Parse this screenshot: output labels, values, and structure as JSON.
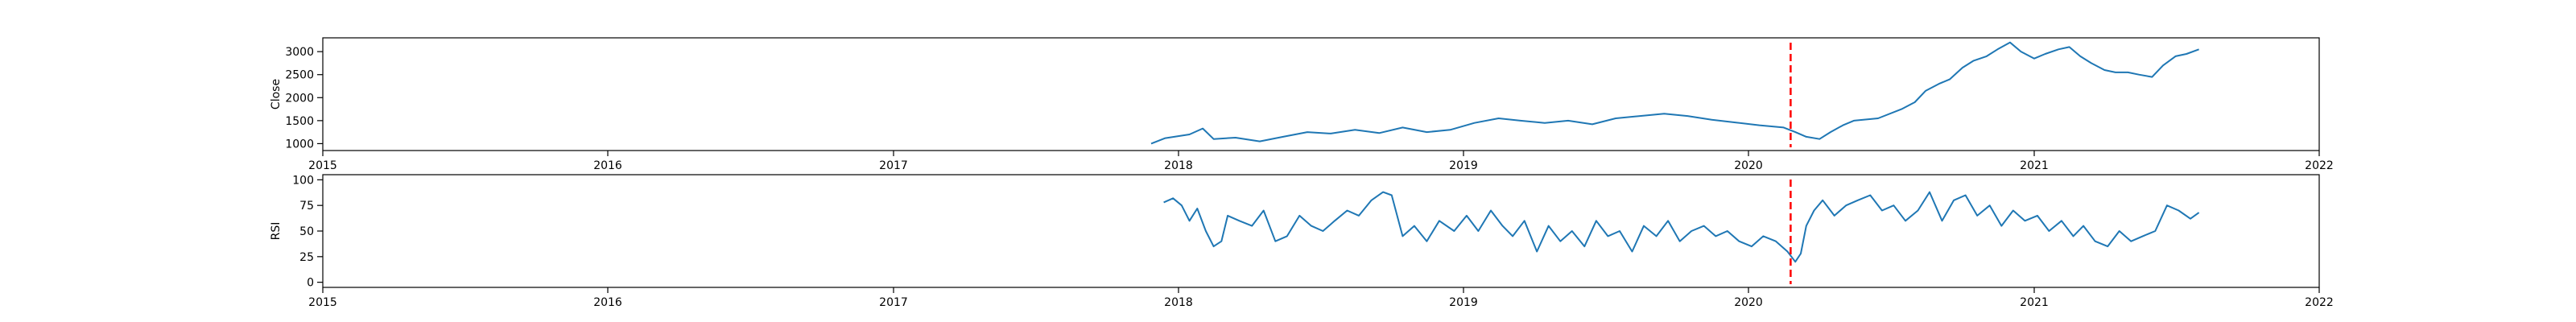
{
  "chart_data": [
    {
      "type": "line",
      "title": "",
      "xlabel": "",
      "ylabel": "Close",
      "xlim": [
        "2015-01-01",
        "2022-01-01"
      ],
      "ylim": [
        850,
        3300
      ],
      "x_ticks": [
        "2015",
        "2016",
        "2017",
        "2018",
        "2019",
        "2020",
        "2021",
        "2022"
      ],
      "y_ticks": [
        1000,
        1500,
        2000,
        2500,
        3000
      ],
      "grid": false,
      "line_color": "#1f77b4",
      "marker": {
        "x": "2020-02-24",
        "color": "#ff0000",
        "style": "dashed"
      },
      "series": [
        {
          "values": [
            [
              "2017-11-27",
              1000
            ],
            [
              "2017-12-15",
              1120
            ],
            [
              "2018-01-15",
              1200
            ],
            [
              "2018-02-01",
              1330
            ],
            [
              "2018-02-15",
              1100
            ],
            [
              "2018-03-15",
              1130
            ],
            [
              "2018-04-15",
              1050
            ],
            [
              "2018-05-15",
              1150
            ],
            [
              "2018-06-15",
              1250
            ],
            [
              "2018-07-15",
              1220
            ],
            [
              "2018-08-15",
              1300
            ],
            [
              "2018-09-15",
              1230
            ],
            [
              "2018-10-15",
              1350
            ],
            [
              "2018-11-15",
              1250
            ],
            [
              "2018-12-15",
              1300
            ],
            [
              "2019-01-15",
              1450
            ],
            [
              "2019-02-15",
              1550
            ],
            [
              "2019-03-15",
              1500
            ],
            [
              "2019-04-15",
              1450
            ],
            [
              "2019-05-15",
              1500
            ],
            [
              "2019-06-15",
              1420
            ],
            [
              "2019-07-15",
              1550
            ],
            [
              "2019-08-15",
              1600
            ],
            [
              "2019-09-15",
              1650
            ],
            [
              "2019-10-15",
              1600
            ],
            [
              "2019-11-15",
              1520
            ],
            [
              "2019-12-15",
              1460
            ],
            [
              "2020-01-15",
              1400
            ],
            [
              "2020-02-15",
              1350
            ],
            [
              "2020-03-01",
              1250
            ],
            [
              "2020-03-15",
              1150
            ],
            [
              "2020-04-01",
              1100
            ],
            [
              "2020-04-15",
              1250
            ],
            [
              "2020-05-01",
              1400
            ],
            [
              "2020-05-15",
              1500
            ],
            [
              "2020-06-15",
              1550
            ],
            [
              "2020-07-15",
              1750
            ],
            [
              "2020-08-01",
              1900
            ],
            [
              "2020-08-15",
              2150
            ],
            [
              "2020-09-01",
              2300
            ],
            [
              "2020-09-15",
              2400
            ],
            [
              "2020-10-01",
              2650
            ],
            [
              "2020-10-15",
              2800
            ],
            [
              "2020-11-01",
              2900
            ],
            [
              "2020-11-15",
              3050
            ],
            [
              "2020-12-01",
              3200
            ],
            [
              "2020-12-15",
              3000
            ],
            [
              "2021-01-01",
              2850
            ],
            [
              "2021-01-15",
              2950
            ],
            [
              "2021-02-01",
              3050
            ],
            [
              "2021-02-15",
              3100
            ],
            [
              "2021-03-01",
              2900
            ],
            [
              "2021-03-15",
              2750
            ],
            [
              "2021-04-01",
              2600
            ],
            [
              "2021-04-15",
              2550
            ],
            [
              "2021-05-01",
              2550
            ],
            [
              "2021-05-15",
              2500
            ],
            [
              "2021-06-01",
              2450
            ],
            [
              "2021-06-15",
              2700
            ],
            [
              "2021-07-01",
              2900
            ],
            [
              "2021-07-15",
              2950
            ],
            [
              "2021-07-31",
              3050
            ]
          ]
        }
      ]
    },
    {
      "type": "line",
      "title": "",
      "xlabel": "",
      "ylabel": "RSI",
      "xlim": [
        "2015-01-01",
        "2022-01-01"
      ],
      "ylim": [
        -5,
        105
      ],
      "x_ticks": [
        "2015",
        "2016",
        "2017",
        "2018",
        "2019",
        "2020",
        "2021",
        "2022"
      ],
      "y_ticks": [
        0,
        25,
        50,
        75,
        100
      ],
      "grid": false,
      "line_color": "#1f77b4",
      "marker": {
        "x": "2020-02-24",
        "color": "#ff0000",
        "style": "dashed"
      },
      "series": [
        {
          "values": [
            [
              "2017-12-13",
              78
            ],
            [
              "2017-12-25",
              82
            ],
            [
              "2018-01-05",
              75
            ],
            [
              "2018-01-15",
              60
            ],
            [
              "2018-01-25",
              72
            ],
            [
              "2018-02-05",
              50
            ],
            [
              "2018-02-15",
              35
            ],
            [
              "2018-02-25",
              40
            ],
            [
              "2018-03-05",
              65
            ],
            [
              "2018-03-20",
              60
            ],
            [
              "2018-04-05",
              55
            ],
            [
              "2018-04-20",
              70
            ],
            [
              "2018-05-05",
              40
            ],
            [
              "2018-05-20",
              45
            ],
            [
              "2018-06-05",
              65
            ],
            [
              "2018-06-20",
              55
            ],
            [
              "2018-07-05",
              50
            ],
            [
              "2018-07-20",
              60
            ],
            [
              "2018-08-05",
              70
            ],
            [
              "2018-08-20",
              65
            ],
            [
              "2018-09-05",
              80
            ],
            [
              "2018-09-20",
              88
            ],
            [
              "2018-10-01",
              85
            ],
            [
              "2018-10-15",
              45
            ],
            [
              "2018-10-30",
              55
            ],
            [
              "2018-11-15",
              40
            ],
            [
              "2018-12-01",
              60
            ],
            [
              "2018-12-20",
              50
            ],
            [
              "2019-01-05",
              65
            ],
            [
              "2019-01-20",
              50
            ],
            [
              "2019-02-05",
              70
            ],
            [
              "2019-02-20",
              55
            ],
            [
              "2019-03-05",
              45
            ],
            [
              "2019-03-20",
              60
            ],
            [
              "2019-04-05",
              30
            ],
            [
              "2019-04-20",
              55
            ],
            [
              "2019-05-05",
              40
            ],
            [
              "2019-05-20",
              50
            ],
            [
              "2019-06-05",
              35
            ],
            [
              "2019-06-20",
              60
            ],
            [
              "2019-07-05",
              45
            ],
            [
              "2019-07-20",
              50
            ],
            [
              "2019-08-05",
              30
            ],
            [
              "2019-08-20",
              55
            ],
            [
              "2019-09-05",
              45
            ],
            [
              "2019-09-20",
              60
            ],
            [
              "2019-10-05",
              40
            ],
            [
              "2019-10-20",
              50
            ],
            [
              "2019-11-05",
              55
            ],
            [
              "2019-11-20",
              45
            ],
            [
              "2019-12-05",
              50
            ],
            [
              "2019-12-20",
              40
            ],
            [
              "2020-01-05",
              35
            ],
            [
              "2020-01-20",
              45
            ],
            [
              "2020-02-05",
              40
            ],
            [
              "2020-02-20",
              30
            ],
            [
              "2020-03-01",
              20
            ],
            [
              "2020-03-08",
              28
            ],
            [
              "2020-03-15",
              55
            ],
            [
              "2020-03-25",
              70
            ],
            [
              "2020-04-05",
              80
            ],
            [
              "2020-04-20",
              65
            ],
            [
              "2020-05-05",
              75
            ],
            [
              "2020-05-20",
              80
            ],
            [
              "2020-06-05",
              85
            ],
            [
              "2020-06-20",
              70
            ],
            [
              "2020-07-05",
              75
            ],
            [
              "2020-07-20",
              60
            ],
            [
              "2020-08-05",
              70
            ],
            [
              "2020-08-20",
              88
            ],
            [
              "2020-09-05",
              60
            ],
            [
              "2020-09-20",
              80
            ],
            [
              "2020-10-05",
              85
            ],
            [
              "2020-10-20",
              65
            ],
            [
              "2020-11-05",
              75
            ],
            [
              "2020-11-20",
              55
            ],
            [
              "2020-12-05",
              70
            ],
            [
              "2020-12-20",
              60
            ],
            [
              "2021-01-05",
              65
            ],
            [
              "2021-01-20",
              50
            ],
            [
              "2021-02-05",
              60
            ],
            [
              "2021-02-20",
              45
            ],
            [
              "2021-03-05",
              55
            ],
            [
              "2021-03-20",
              40
            ],
            [
              "2021-04-05",
              35
            ],
            [
              "2021-04-20",
              50
            ],
            [
              "2021-05-05",
              40
            ],
            [
              "2021-05-20",
              45
            ],
            [
              "2021-06-05",
              50
            ],
            [
              "2021-06-20",
              75
            ],
            [
              "2021-07-05",
              70
            ],
            [
              "2021-07-20",
              62
            ],
            [
              "2021-07-31",
              68
            ]
          ]
        }
      ]
    }
  ]
}
